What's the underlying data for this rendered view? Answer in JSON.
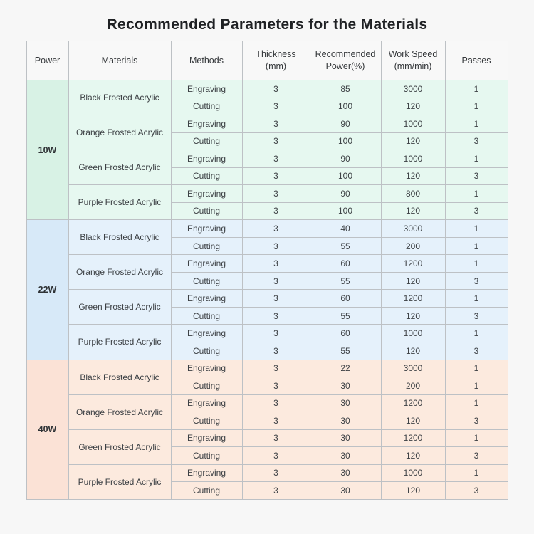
{
  "page": {
    "title": "Recommended Parameters for the Materials",
    "background": "#f7f7f7"
  },
  "table": {
    "headers": [
      "Power",
      "Materials",
      "Methods",
      "Thickness\n(mm)",
      "Recommended\nPower(%)",
      "Work Speed\n(mm/min)",
      "Passes"
    ],
    "border_color": "#bdc1c5",
    "sections": [
      {
        "power": "10W",
        "colors": {
          "power_bg": "#d8f2e5",
          "row_bg": "#e6f8f0"
        },
        "materials": [
          {
            "name": "Black Frosted Acrylic",
            "rows": [
              {
                "method": "Engraving",
                "thickness": "3",
                "power_pct": "85",
                "speed": "3000",
                "passes": "1"
              },
              {
                "method": "Cutting",
                "thickness": "3",
                "power_pct": "100",
                "speed": "120",
                "passes": "1"
              }
            ]
          },
          {
            "name": "Orange Frosted Acrylic",
            "rows": [
              {
                "method": "Engraving",
                "thickness": "3",
                "power_pct": "90",
                "speed": "1000",
                "passes": "1"
              },
              {
                "method": "Cutting",
                "thickness": "3",
                "power_pct": "100",
                "speed": "120",
                "passes": "3"
              }
            ]
          },
          {
            "name": "Green Frosted Acrylic",
            "rows": [
              {
                "method": "Engraving",
                "thickness": "3",
                "power_pct": "90",
                "speed": "1000",
                "passes": "1"
              },
              {
                "method": "Cutting",
                "thickness": "3",
                "power_pct": "100",
                "speed": "120",
                "passes": "3"
              }
            ]
          },
          {
            "name": "Purple Frosted Acrylic",
            "rows": [
              {
                "method": "Engraving",
                "thickness": "3",
                "power_pct": "90",
                "speed": "800",
                "passes": "1"
              },
              {
                "method": "Cutting",
                "thickness": "3",
                "power_pct": "100",
                "speed": "120",
                "passes": "3"
              }
            ]
          }
        ]
      },
      {
        "power": "22W",
        "colors": {
          "power_bg": "#d7e9f8",
          "row_bg": "#e5f1fb"
        },
        "materials": [
          {
            "name": "Black Frosted Acrylic",
            "rows": [
              {
                "method": "Engraving",
                "thickness": "3",
                "power_pct": "40",
                "speed": "3000",
                "passes": "1"
              },
              {
                "method": "Cutting",
                "thickness": "3",
                "power_pct": "55",
                "speed": "200",
                "passes": "1"
              }
            ]
          },
          {
            "name": "Orange Frosted Acrylic",
            "rows": [
              {
                "method": "Engraving",
                "thickness": "3",
                "power_pct": "60",
                "speed": "1200",
                "passes": "1"
              },
              {
                "method": "Cutting",
                "thickness": "3",
                "power_pct": "55",
                "speed": "120",
                "passes": "3"
              }
            ]
          },
          {
            "name": "Green Frosted Acrylic",
            "rows": [
              {
                "method": "Engraving",
                "thickness": "3",
                "power_pct": "60",
                "speed": "1200",
                "passes": "1"
              },
              {
                "method": "Cutting",
                "thickness": "3",
                "power_pct": "55",
                "speed": "120",
                "passes": "3"
              }
            ]
          },
          {
            "name": "Purple Frosted Acrylic",
            "rows": [
              {
                "method": "Engraving",
                "thickness": "3",
                "power_pct": "60",
                "speed": "1000",
                "passes": "1"
              },
              {
                "method": "Cutting",
                "thickness": "3",
                "power_pct": "55",
                "speed": "120",
                "passes": "3"
              }
            ]
          }
        ]
      },
      {
        "power": "40W",
        "colors": {
          "power_bg": "#fbe2d6",
          "row_bg": "#fceade"
        },
        "materials": [
          {
            "name": "Black Frosted Acrylic",
            "rows": [
              {
                "method": "Engraving",
                "thickness": "3",
                "power_pct": "22",
                "speed": "3000",
                "passes": "1"
              },
              {
                "method": "Cutting",
                "thickness": "3",
                "power_pct": "30",
                "speed": "200",
                "passes": "1"
              }
            ]
          },
          {
            "name": "Orange Frosted Acrylic",
            "rows": [
              {
                "method": "Engraving",
                "thickness": "3",
                "power_pct": "30",
                "speed": "1200",
                "passes": "1"
              },
              {
                "method": "Cutting",
                "thickness": "3",
                "power_pct": "30",
                "speed": "120",
                "passes": "3"
              }
            ]
          },
          {
            "name": "Green Frosted Acrylic",
            "rows": [
              {
                "method": "Engraving",
                "thickness": "3",
                "power_pct": "30",
                "speed": "1200",
                "passes": "1"
              },
              {
                "method": "Cutting",
                "thickness": "3",
                "power_pct": "30",
                "speed": "120",
                "passes": "3"
              }
            ]
          },
          {
            "name": "Purple Frosted Acrylic",
            "rows": [
              {
                "method": "Engraving",
                "thickness": "3",
                "power_pct": "30",
                "speed": "1000",
                "passes": "1"
              },
              {
                "method": "Cutting",
                "thickness": "3",
                "power_pct": "30",
                "speed": "120",
                "passes": "3"
              }
            ]
          }
        ]
      }
    ]
  }
}
